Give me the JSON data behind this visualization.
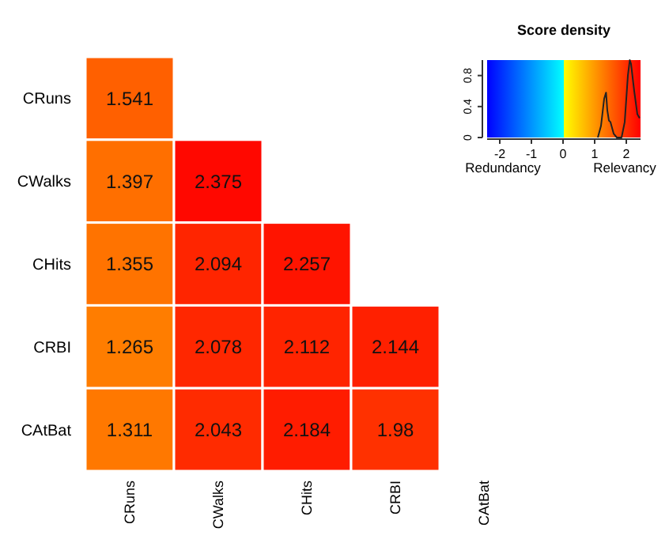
{
  "chart_data": [
    {
      "type": "heatmap",
      "categories": [
        "CRuns",
        "CWalks",
        "CHits",
        "CRBI",
        "CAtBat"
      ],
      "y_categories": [
        "CRuns",
        "CWalks",
        "CHits",
        "CRBI",
        "CAtBat"
      ],
      "cells": [
        [
          1.541,
          null,
          null,
          null,
          null
        ],
        [
          1.397,
          2.375,
          null,
          null,
          null
        ],
        [
          1.355,
          2.094,
          2.257,
          null,
          null
        ],
        [
          1.265,
          2.078,
          2.112,
          2.144,
          null
        ],
        [
          1.311,
          2.043,
          2.184,
          1.98,
          null
        ]
      ],
      "data_labels": true,
      "colors": [
        "#0000ff",
        "#00ffff",
        "#ffff00",
        "#ff0000"
      ],
      "annotations": [
        "Redundancy",
        "Relevancy"
      ]
    },
    {
      "type": "line",
      "title": "Score density",
      "xlim": [
        -2.4,
        2.45
      ],
      "xticks": [
        -2,
        -1,
        0,
        1,
        2
      ],
      "ylim": [
        0,
        1
      ],
      "yticks": [
        0,
        0.4,
        0.8
      ],
      "x": [
        1.1,
        1.2,
        1.3,
        1.36,
        1.4,
        1.45,
        1.5,
        1.6,
        1.7,
        1.85,
        1.95,
        2.05,
        2.11,
        2.15,
        2.25,
        2.35,
        2.42
      ],
      "series": [
        {
          "color": "#222222",
          "values": [
            0,
            0.15,
            0.5,
            0.58,
            0.35,
            0.22,
            0.2,
            0.05,
            0,
            0,
            0.2,
            0.8,
            1.0,
            0.95,
            0.6,
            0.3,
            0.25
          ]
        }
      ]
    }
  ]
}
